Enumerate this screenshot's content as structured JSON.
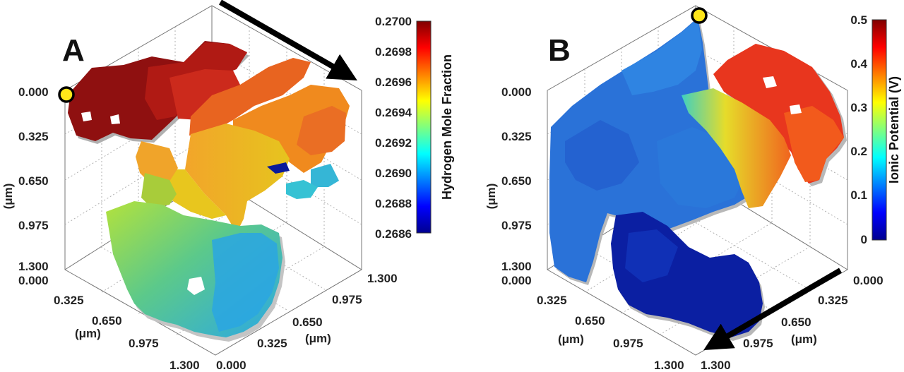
{
  "chart_data": [
    {
      "panel": "A",
      "type": "scatter",
      "title": "",
      "plot_kind": "3D voxel surface (microstructure)",
      "colorbar": {
        "label": "Hydrogen Mole Fraction",
        "ticks": [
          "0.2700",
          "0.2698",
          "0.2696",
          "0.2694",
          "0.2692",
          "0.2690",
          "0.2688",
          "0.2686"
        ],
        "range": [
          0.2686,
          0.27
        ],
        "colormap": "jet"
      },
      "axes": {
        "vertical": {
          "label": "(μm)",
          "ticks": [
            "0.000",
            "0.325",
            "0.650",
            "0.975",
            "1.300"
          ],
          "range": [
            0,
            1.3
          ]
        },
        "depth_left": {
          "label": "(μm)",
          "ticks": [
            "0.000",
            "0.325",
            "0.650",
            "0.975",
            "1.300"
          ],
          "range": [
            0,
            1.3
          ]
        },
        "depth_right": {
          "label": "(μm)",
          "ticks": [
            "0.000",
            "0.325",
            "0.650",
            "0.975",
            "1.300"
          ],
          "range": [
            0,
            1.3
          ]
        }
      },
      "annotations": [
        "flow-direction-arrow",
        "yellow-marker-top-left"
      ]
    },
    {
      "panel": "B",
      "type": "scatter",
      "title": "",
      "plot_kind": "3D voxel surface (microstructure)",
      "colorbar": {
        "label": "Ionic Potential (V)",
        "ticks": [
          "0.5",
          "0.4",
          "0.3",
          "0.2",
          "0.1",
          "0"
        ],
        "range": [
          0,
          0.5
        ],
        "colormap": "jet"
      },
      "axes": {
        "vertical": {
          "label": "(μm)",
          "ticks": [
            "0.000",
            "0.325",
            "0.650",
            "0.975",
            "1.300"
          ],
          "range": [
            0,
            1.3
          ]
        },
        "depth_left": {
          "label": "(μm)",
          "ticks": [
            "0.000",
            "0.325",
            "0.650",
            "0.975",
            "1.300"
          ],
          "range": [
            0,
            1.3
          ]
        },
        "depth_right": {
          "label": "(μm)",
          "ticks": [
            "0.000",
            "0.325",
            "0.650",
            "0.975",
            "1.300"
          ],
          "range": [
            0,
            1.3
          ]
        }
      },
      "annotations": [
        "current-direction-arrow",
        "yellow-marker-top"
      ]
    }
  ],
  "colors": {
    "dark_red": "#8b0d0d",
    "red": "#d42a1c",
    "orange": "#f07a1c",
    "yellow": "#e8d21c",
    "yellow_green": "#a8d03a",
    "green": "#6cc870",
    "cyan": "#34c4d8",
    "light_blue": "#2a9ee0",
    "blue": "#2a6ad8",
    "dark_blue": "#0c1ea0",
    "marker": "#ffe61a"
  }
}
